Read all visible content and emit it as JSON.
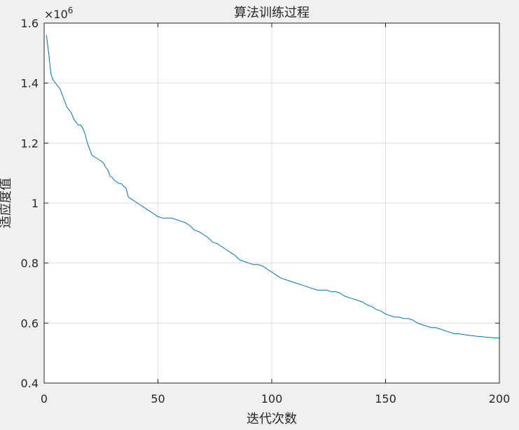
{
  "chart_data": {
    "type": "line",
    "title": "算法训练过程",
    "xlabel": "迭代次数",
    "ylabel": "适应度值",
    "xlim": [
      0,
      200
    ],
    "ylim": [
      0.4,
      1.6
    ],
    "y_multiplier_base": "×10",
    "y_multiplier_exp": "6",
    "xticks": [
      0,
      50,
      100,
      150,
      200
    ],
    "xtick_labels": [
      "0",
      "50",
      "100",
      "150",
      "200"
    ],
    "yticks": [
      0.4,
      0.6,
      0.8,
      1.0,
      1.2,
      1.4,
      1.6
    ],
    "ytick_labels": [
      "0.4",
      "0.6",
      "0.8",
      "1",
      "1.2",
      "1.4",
      "1.6"
    ],
    "grid": true,
    "series": [
      {
        "color": "#0072bd",
        "x": [
          1,
          2,
          3,
          4,
          5,
          6,
          7,
          8,
          9,
          10,
          11,
          12,
          13,
          14,
          15,
          16,
          17,
          18,
          19,
          20,
          21,
          22,
          23,
          24,
          25,
          26,
          27,
          28,
          29,
          30,
          31,
          32,
          33,
          34,
          35,
          36,
          37,
          38,
          39,
          40,
          41,
          42,
          43,
          44,
          45,
          46,
          47,
          48,
          49,
          50,
          52,
          54,
          56,
          58,
          60,
          62,
          64,
          66,
          68,
          70,
          72,
          74,
          76,
          78,
          80,
          82,
          84,
          86,
          88,
          90,
          92,
          94,
          96,
          98,
          100,
          102,
          104,
          106,
          108,
          110,
          112,
          114,
          116,
          118,
          120,
          122,
          124,
          126,
          128,
          130,
          132,
          134,
          136,
          138,
          140,
          142,
          144,
          146,
          148,
          150,
          152,
          154,
          156,
          158,
          160,
          162,
          164,
          166,
          168,
          170,
          172,
          174,
          176,
          178,
          180,
          182,
          184,
          186,
          188,
          190,
          192,
          194,
          196,
          198,
          200
        ],
        "values": [
          1.56,
          1.5,
          1.43,
          1.41,
          1.4,
          1.39,
          1.38,
          1.36,
          1.34,
          1.32,
          1.31,
          1.3,
          1.28,
          1.27,
          1.26,
          1.26,
          1.25,
          1.23,
          1.2,
          1.18,
          1.16,
          1.155,
          1.15,
          1.145,
          1.14,
          1.135,
          1.12,
          1.11,
          1.09,
          1.085,
          1.075,
          1.07,
          1.065,
          1.065,
          1.055,
          1.05,
          1.02,
          1.015,
          1.01,
          1.005,
          1.0,
          0.995,
          0.99,
          0.985,
          0.98,
          0.975,
          0.97,
          0.965,
          0.96,
          0.955,
          0.95,
          0.95,
          0.95,
          0.945,
          0.94,
          0.935,
          0.925,
          0.91,
          0.905,
          0.895,
          0.885,
          0.87,
          0.865,
          0.855,
          0.845,
          0.835,
          0.825,
          0.81,
          0.805,
          0.8,
          0.795,
          0.795,
          0.79,
          0.78,
          0.77,
          0.76,
          0.75,
          0.745,
          0.74,
          0.735,
          0.73,
          0.725,
          0.72,
          0.715,
          0.71,
          0.71,
          0.71,
          0.705,
          0.705,
          0.7,
          0.69,
          0.685,
          0.68,
          0.675,
          0.67,
          0.66,
          0.655,
          0.645,
          0.64,
          0.63,
          0.625,
          0.62,
          0.62,
          0.615,
          0.615,
          0.61,
          0.6,
          0.595,
          0.59,
          0.585,
          0.585,
          0.58,
          0.575,
          0.57,
          0.565,
          0.565,
          0.562,
          0.56,
          0.558,
          0.556,
          0.555,
          0.553,
          0.552,
          0.551,
          0.55
        ]
      }
    ]
  }
}
